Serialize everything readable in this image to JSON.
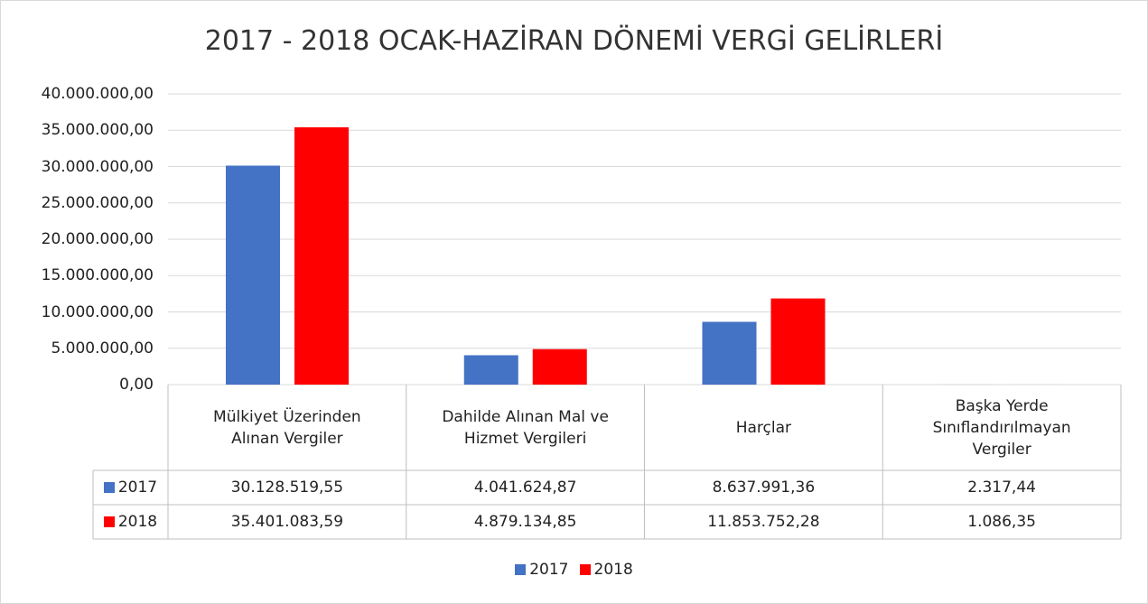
{
  "chart_data": {
    "type": "bar",
    "title": "2017 - 2018 OCAK-HAZİRAN DÖNEMİ VERGİ GELİRLERİ",
    "categories": [
      "Mülkiyet Üzerinden Alınan Vergiler",
      "Dahilde Alınan Mal ve Hizmet Vergileri",
      "Harçlar",
      "Başka Yerde Sınıflandırılmayan Vergiler"
    ],
    "series": [
      {
        "name": "2017",
        "color": "#4472c4",
        "values": [
          30128519.55,
          4041624.87,
          8637991.36,
          2317.44
        ],
        "value_labels": [
          "30.128.519,55",
          "4.041.624,87",
          "8.637.991,36",
          "2.317,44"
        ]
      },
      {
        "name": "2018",
        "color": "#ff0000",
        "values": [
          35401083.59,
          4879134.85,
          11853752.28,
          1086.35
        ],
        "value_labels": [
          "35.401.083,59",
          "4.879.134,85",
          "11.853.752,28",
          "1.086,35"
        ]
      }
    ],
    "ylim": [
      0,
      40000000
    ],
    "yticks": [
      {
        "value": 0,
        "label": "0,00"
      },
      {
        "value": 5000000,
        "label": "5.000.000,00"
      },
      {
        "value": 10000000,
        "label": "10.000.000,00"
      },
      {
        "value": 15000000,
        "label": "15.000.000,00"
      },
      {
        "value": 20000000,
        "label": "20.000.000,00"
      },
      {
        "value": 25000000,
        "label": "25.000.000,00"
      },
      {
        "value": 30000000,
        "label": "30.000.000,00"
      },
      {
        "value": 35000000,
        "label": "35.000.000,00"
      },
      {
        "value": 40000000,
        "label": "40.000.000,00"
      }
    ],
    "grid": true,
    "legend": "bottom"
  }
}
